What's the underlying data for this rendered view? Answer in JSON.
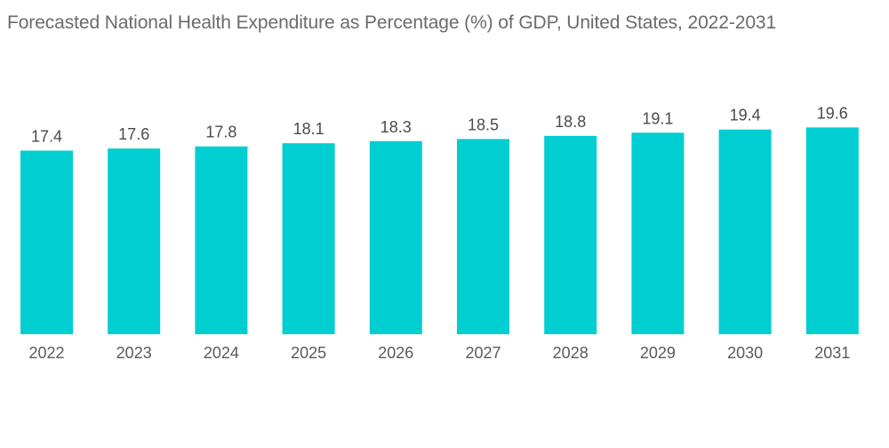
{
  "chart_data": {
    "type": "bar",
    "title": "Forecasted National Health Expenditure as Percentage (%) of GDP, United States, 2022-2031",
    "xlabel": "",
    "ylabel": "",
    "categories": [
      "2022",
      "2023",
      "2024",
      "2025",
      "2026",
      "2027",
      "2028",
      "2029",
      "2030",
      "2031"
    ],
    "values": [
      17.4,
      17.6,
      17.8,
      18.1,
      18.3,
      18.5,
      18.8,
      19.1,
      19.4,
      19.6
    ],
    "value_labels": [
      "17.4",
      "17.6",
      "17.8",
      "18.1",
      "18.3",
      "18.5",
      "18.8",
      "19.1",
      "19.4",
      "19.6"
    ],
    "ylim": [
      0,
      19.6
    ],
    "grid": false,
    "legend": "none",
    "bar_color": "#00CED1"
  }
}
